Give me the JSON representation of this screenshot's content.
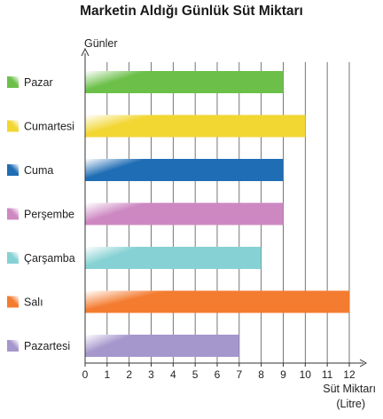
{
  "chart_data": {
    "type": "bar",
    "orientation": "horizontal",
    "title": "Marketin Aldığı Günlük Süt Miktarı",
    "ylabel": "Günler",
    "xlabel_line1": "Süt Miktarı",
    "xlabel_line2": "(Litre)",
    "categories": [
      "Pazar",
      "Cumartesi",
      "Cuma",
      "Perşembe",
      "Çarşamba",
      "Salı",
      "Pazartesi"
    ],
    "values": [
      9,
      10,
      9,
      9,
      8,
      12,
      7
    ],
    "colors": [
      "#6cc04a",
      "#f2d632",
      "#1f6db4",
      "#cd88c2",
      "#86d1d3",
      "#f47c30",
      "#a596cc"
    ],
    "xlim": [
      0,
      12
    ],
    "ticks": [
      "0",
      "1",
      "2",
      "3",
      "4",
      "5",
      "6",
      "7",
      "8",
      "9",
      "10",
      "11",
      "12"
    ],
    "grid": true
  }
}
